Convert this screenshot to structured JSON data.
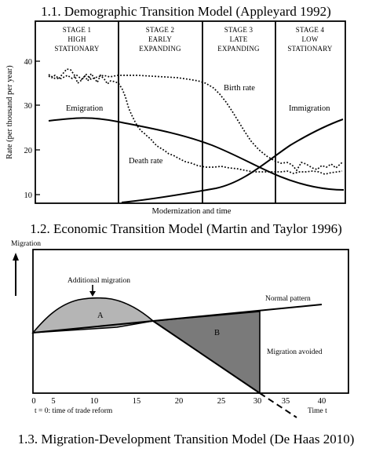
{
  "panel1": {
    "title": "1.1. Demographic Transition Model (Appleyard 1992)",
    "ylabel": "Rate (per thousand per year)",
    "xlabel": "Modernization and time",
    "stages": [
      {
        "line1": "STAGE 1",
        "line2": "HIGH",
        "line3": "STATIONARY"
      },
      {
        "line1": "STAGE 2",
        "line2": "EARLY",
        "line3": "EXPANDING"
      },
      {
        "line1": "STAGE 3",
        "line2": "LATE",
        "line3": "EXPANDING"
      },
      {
        "line1": "STAGE 4",
        "line2": "LOW",
        "line3": "STATIONARY"
      }
    ],
    "yticks": [
      "40",
      "30",
      "20",
      "10"
    ],
    "labels": {
      "birth": "Birth rate",
      "death": "Death rate",
      "emigration": "Emigration",
      "immigration": "Immigration"
    }
  },
  "panel2": {
    "title": "1.2. Economic Transition Model (Martin and Taylor 1996)",
    "ylabel": "Migration",
    "xlabel": "Time t",
    "xnote": "t = 0: time of trade reform",
    "xticks": [
      "0",
      "5",
      "10",
      "15",
      "20",
      "25",
      "30",
      "35",
      "40"
    ],
    "labels": {
      "additional": "Additional migration",
      "normal": "Normal pattern",
      "avoided": "Migration avoided",
      "a": "A",
      "b": "B"
    },
    "colors": {
      "area_a": "#b5b5b5",
      "area_b": "#7a7a7a"
    }
  },
  "panel3": {
    "title": "1.3. Migration-Development Transition Model (De Haas 2010)"
  }
}
